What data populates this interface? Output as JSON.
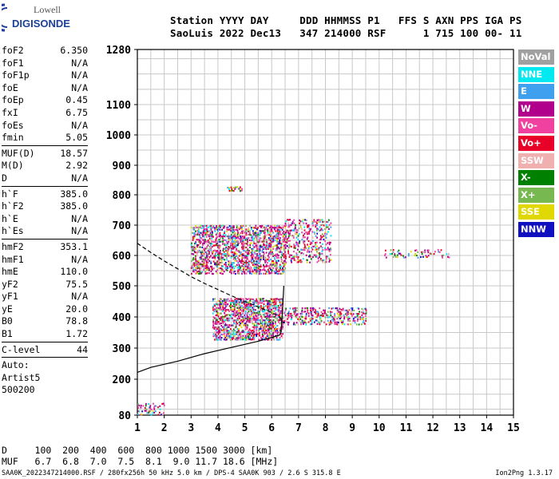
{
  "logo": {
    "line1": "Lowell",
    "line2": "DIGISONDE"
  },
  "header": {
    "labels": [
      "Station",
      "YYYY",
      "DAY",
      "DDD",
      "HHMMSS",
      "P1",
      "FFS",
      "S",
      "AXN",
      "PPS",
      "IGA",
      "PS"
    ],
    "values": [
      "SaoLuis",
      "2022",
      "Dec13",
      "347",
      "214000",
      "RSF",
      "",
      "1",
      "715",
      "100",
      "00-",
      "11"
    ]
  },
  "params": [
    {
      "label": "foF2",
      "value": "6.350"
    },
    {
      "label": "foF1",
      "value": "N/A"
    },
    {
      "label": "foF1p",
      "value": "N/A"
    },
    {
      "label": "foE",
      "value": "N/A"
    },
    {
      "label": "foEp",
      "value": "0.45"
    },
    {
      "label": "fxI",
      "value": "6.75"
    },
    {
      "label": "foEs",
      "value": "N/A"
    },
    {
      "label": "fmin",
      "value": "5.05"
    },
    {
      "sep": true
    },
    {
      "label": "MUF(D)",
      "value": "18.57"
    },
    {
      "label": "M(D)",
      "value": "2.92"
    },
    {
      "label": "D",
      "value": "N/A"
    },
    {
      "sep": true
    },
    {
      "label": "h`F",
      "value": "385.0"
    },
    {
      "label": "h`F2",
      "value": "385.0"
    },
    {
      "label": "h`E",
      "value": "N/A"
    },
    {
      "label": "h`Es",
      "value": "N/A"
    },
    {
      "sep": true
    },
    {
      "label": "hmF2",
      "value": "353.1"
    },
    {
      "label": "hmF1",
      "value": "N/A"
    },
    {
      "label": "hmE",
      "value": "110.0"
    },
    {
      "label": "yF2",
      "value": "75.5"
    },
    {
      "label": "yF1",
      "value": "N/A"
    },
    {
      "label": "yE",
      "value": "20.0"
    },
    {
      "label": "B0",
      "value": "78.8"
    },
    {
      "label": "B1",
      "value": "1.72"
    },
    {
      "sep": true
    },
    {
      "label": "C-level",
      "value": "44"
    },
    {
      "sep": true
    },
    {
      "text": "Auto:"
    },
    {
      "text": "Artist5"
    },
    {
      "text": "500200"
    }
  ],
  "legend": [
    {
      "label": "NoVal",
      "color": "#a0a0a0"
    },
    {
      "label": "NNE",
      "color": "#00e8f0"
    },
    {
      "label": "E",
      "color": "#3fa0f0"
    },
    {
      "label": "W",
      "color": "#b0008c"
    },
    {
      "label": "Vo-",
      "color": "#f040a0"
    },
    {
      "label": "Vo+",
      "color": "#e80028"
    },
    {
      "label": "SSW",
      "color": "#f0b0b0"
    },
    {
      "label": "X-",
      "color": "#008000"
    },
    {
      "label": "X+",
      "color": "#78b850"
    },
    {
      "label": "SSE",
      "color": "#e0d800"
    },
    {
      "label": "NNW",
      "color": "#1010c0"
    }
  ],
  "chart_data": {
    "type": "scatter",
    "xlim": [
      1,
      15
    ],
    "ylim": [
      80,
      1280
    ],
    "xticks": [
      "1",
      "2",
      "3",
      "4",
      "5",
      "6",
      "7",
      "8",
      "9",
      "10",
      "11",
      "12",
      "13",
      "14",
      "15"
    ],
    "yticks": [
      "80",
      "200",
      "300",
      "400",
      "500",
      "600",
      "700",
      "800",
      "900",
      "1000",
      "1100",
      "1280"
    ],
    "grid": true,
    "regions": [
      {
        "x": [
          3.8,
          6.4
        ],
        "y": [
          330,
          460
        ],
        "density": 0.7
      },
      {
        "x": [
          6.4,
          9.5
        ],
        "y": [
          375,
          430
        ],
        "density": 0.45
      },
      {
        "x": [
          3.0,
          6.5
        ],
        "y": [
          540,
          700
        ],
        "density": 0.6
      },
      {
        "x": [
          6.5,
          8.2
        ],
        "y": [
          580,
          720
        ],
        "density": 0.35
      },
      {
        "x": [
          10.2,
          12.6
        ],
        "y": [
          595,
          620
        ],
        "density": 0.25
      },
      {
        "x": [
          4.3,
          4.9
        ],
        "y": [
          812,
          828
        ],
        "density": 0.5
      },
      {
        "x": [
          1.0,
          2.0
        ],
        "y": [
          80,
          120
        ],
        "density": 0.35
      }
    ],
    "trace_solid": [
      [
        1.0,
        222
      ],
      [
        1.5,
        238
      ],
      [
        2.0,
        248
      ],
      [
        2.5,
        258
      ],
      [
        3.0,
        270
      ],
      [
        3.5,
        282
      ],
      [
        4.0,
        292
      ],
      [
        4.5,
        302
      ],
      [
        5.0,
        312
      ],
      [
        5.5,
        322
      ],
      [
        6.0,
        334
      ],
      [
        6.3,
        342
      ],
      [
        6.35,
        355
      ],
      [
        6.4,
        420
      ],
      [
        6.45,
        500
      ]
    ],
    "trace_dashed": [
      [
        1.0,
        640
      ],
      [
        1.5,
        610
      ],
      [
        2.0,
        582
      ],
      [
        2.5,
        556
      ],
      [
        3.0,
        530
      ],
      [
        3.5,
        508
      ],
      [
        4.0,
        488
      ],
      [
        4.5,
        468
      ],
      [
        5.0,
        450
      ],
      [
        5.5,
        432
      ],
      [
        6.0,
        414
      ],
      [
        6.3,
        400
      ],
      [
        6.45,
        380
      ]
    ]
  },
  "dmuf": {
    "d_label": "D",
    "d_values": [
      "100",
      "200",
      "400",
      "600",
      "800",
      "1000",
      "1500",
      "3000"
    ],
    "d_unit": "[km]",
    "m_label": "MUF",
    "m_values": [
      "6.7",
      "6.8",
      "7.0",
      "7.5",
      "8.1",
      "9.0",
      "11.7",
      "18.6"
    ],
    "m_unit": "[MHz]"
  },
  "footer": {
    "left": "SAA0K_2022347214000.RSF / 280fx256h 50 kHz 5.0 km / DPS-4 SAA0K 903 / 2.6 S 315.8 E",
    "right": "Ion2Png 1.3.17"
  }
}
